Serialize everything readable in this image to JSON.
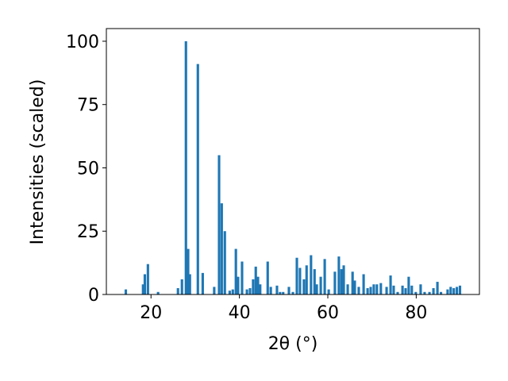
{
  "chart_data": {
    "type": "bar",
    "xlabel": "2θ (°)",
    "ylabel": "Intensities (scaled)",
    "x": [
      14.3,
      18.2,
      18.6,
      19.3,
      21.6,
      26.1,
      27.0,
      27.9,
      28.4,
      28.8,
      30.6,
      31.7,
      34.3,
      35.4,
      36.0,
      36.7,
      37.8,
      38.5,
      39.2,
      39.7,
      40.6,
      41.7,
      42.4,
      43.1,
      43.7,
      44.2,
      44.7,
      46.4,
      47.1,
      48.5,
      49.2,
      49.9,
      51.2,
      52.1,
      53.0,
      53.7,
      54.6,
      55.2,
      56.2,
      57.0,
      57.5,
      58.4,
      59.3,
      60.2,
      61.6,
      62.5,
      63.1,
      63.6,
      64.5,
      65.6,
      66.1,
      67.0,
      68.1,
      69.0,
      69.7,
      70.4,
      71.1,
      72.0,
      73.3,
      74.2,
      74.9,
      75.8,
      76.9,
      77.6,
      78.3,
      79.0,
      79.9,
      81.0,
      81.9,
      83.0,
      83.9,
      84.8,
      85.6,
      87.1,
      87.8,
      88.5,
      89.2,
      89.9
    ],
    "values": [
      2,
      4,
      8,
      12,
      1,
      2.5,
      6,
      100,
      18,
      8,
      91,
      8.5,
      3,
      55,
      36,
      25,
      1.5,
      2,
      18,
      7,
      13,
      2,
      2.5,
      6,
      11,
      7,
      4,
      13,
      3,
      3.5,
      1,
      1,
      3,
      1,
      14.5,
      10.5,
      6,
      11.5,
      15.5,
      10,
      4,
      7,
      14,
      2,
      9,
      15,
      10,
      11.5,
      4,
      9,
      5.5,
      3,
      8,
      2.5,
      3,
      4,
      4,
      4.5,
      3,
      7.5,
      3.5,
      1,
      3.5,
      2.5,
      7,
      3.5,
      1,
      4,
      1,
      1,
      2.5,
      5,
      1,
      2,
      3,
      2.5,
      3,
      3.5
    ],
    "color": "#1f77b4",
    "xlim": [
      9.9,
      94.3
    ],
    "xticks": [
      20,
      40,
      60,
      80
    ],
    "ylim": [
      0,
      105
    ],
    "yticks": [
      0,
      25,
      50,
      75,
      100
    ]
  }
}
